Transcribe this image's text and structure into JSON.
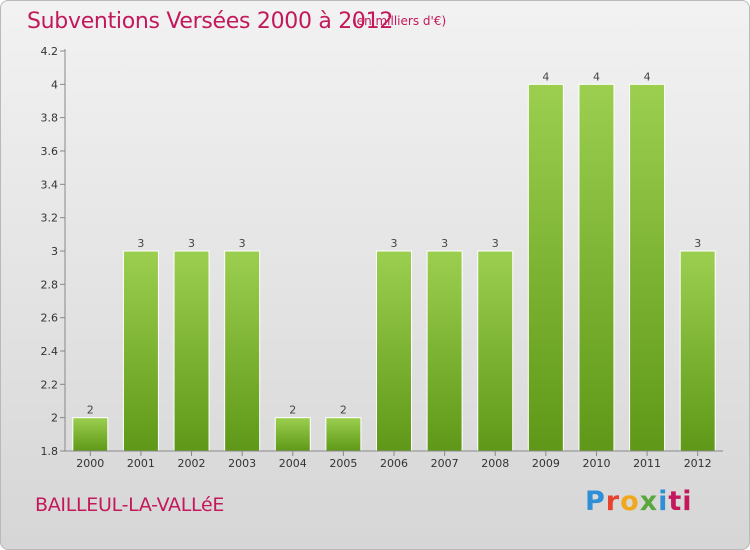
{
  "chart_data": {
    "type": "bar",
    "title": "Subventions Versées 2000 à 2012",
    "subtitle": "(en milliers d'€)",
    "categories": [
      "2000",
      "2001",
      "2002",
      "2003",
      "2004",
      "2005",
      "2006",
      "2007",
      "2008",
      "2009",
      "2010",
      "2011",
      "2012"
    ],
    "values": [
      2,
      3,
      3,
      3,
      2,
      2,
      3,
      3,
      3,
      4,
      4,
      4,
      3
    ],
    "data_labels": [
      "2",
      "3",
      "3",
      "3",
      "2",
      "2",
      "3",
      "3",
      "3",
      "4",
      "4",
      "4",
      "3"
    ],
    "ylim": [
      1.8,
      4.2
    ],
    "yticks": [
      1.8,
      2,
      2.2,
      2.4,
      2.6,
      2.8,
      3,
      3.2,
      3.4,
      3.6,
      3.8,
      4,
      4.2
    ],
    "ytick_labels": [
      "1.8",
      "2",
      "2.2",
      "2.4",
      "2.6",
      "2.8",
      "3",
      "3.2",
      "3.4",
      "3.6",
      "3.8",
      "4",
      "4.2"
    ],
    "grid": false,
    "bar_color_top": "#9ccf4f",
    "bar_color_bottom": "#5f9818"
  },
  "footer": {
    "commune": "BAILLEUL-LA-VALLéE",
    "logo_letters": [
      "P",
      "r",
      "o",
      "x",
      "i",
      "ti"
    ]
  }
}
